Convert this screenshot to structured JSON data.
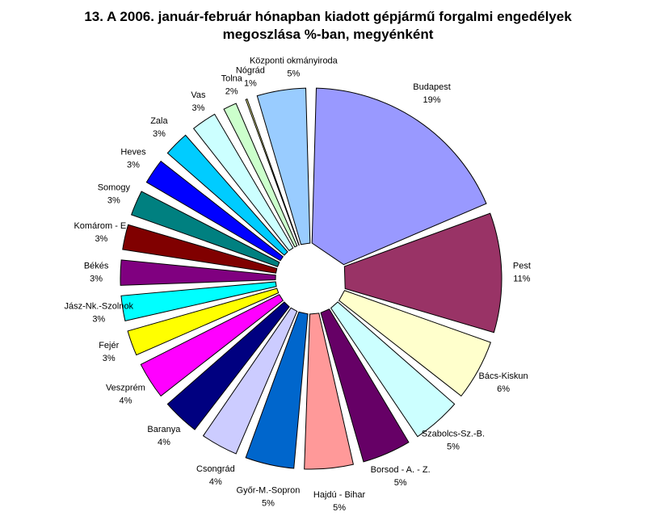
{
  "chart_data": {
    "type": "pie",
    "title_line1": "13. A  2006. január-február hónapban kiadott gépjármű forgalmi engedélyek",
    "title_line2": "megoszlása %-ban, megyénként",
    "legend": "none",
    "slices": [
      {
        "name": "Budapest",
        "pct": "19%",
        "value": 19,
        "color": "#9999ff"
      },
      {
        "name": "Pest",
        "pct": "11%",
        "value": 11,
        "color": "#993366"
      },
      {
        "name": "Bács-Kiskun",
        "pct": "6%",
        "value": 6,
        "color": "#ffffcc"
      },
      {
        "name": "Szabolcs-Sz.-B.",
        "pct": "5%",
        "value": 5,
        "color": "#ccffff"
      },
      {
        "name": "Borsod - A. - Z.",
        "pct": "5%",
        "value": 5,
        "color": "#660066"
      },
      {
        "name": "Hajdú - Bihar",
        "pct": "5%",
        "value": 5,
        "color": "#ff9999"
      },
      {
        "name": "Győr-M.-Sopron",
        "pct": "5%",
        "value": 5,
        "color": "#0066cc"
      },
      {
        "name": "Csongrád",
        "pct": "4%",
        "value": 4,
        "color": "#ccccff"
      },
      {
        "name": "Baranya",
        "pct": "4%",
        "value": 4,
        "color": "#000080"
      },
      {
        "name": "Veszprém",
        "pct": "4%",
        "value": 4,
        "color": "#ff00ff"
      },
      {
        "name": "Fejér",
        "pct": "3%",
        "value": 3,
        "color": "#ffff00"
      },
      {
        "name": "Jász-Nk.-Szolnok",
        "pct": "3%",
        "value": 3,
        "color": "#00ffff"
      },
      {
        "name": "Békés",
        "pct": "3%",
        "value": 3,
        "color": "#800080"
      },
      {
        "name": "Komárom - E.",
        "pct": "3%",
        "value": 3,
        "color": "#800000"
      },
      {
        "name": "Somogy",
        "pct": "3%",
        "value": 3,
        "color": "#008080"
      },
      {
        "name": "Heves",
        "pct": "3%",
        "value": 3,
        "color": "#0000ff"
      },
      {
        "name": "Zala",
        "pct": "3%",
        "value": 3,
        "color": "#00ccff"
      },
      {
        "name": "Vas",
        "pct": "3%",
        "value": 3,
        "color": "#ccffff"
      },
      {
        "name": "Tolna",
        "pct": "2%",
        "value": 2,
        "color": "#ccffcc"
      },
      {
        "name": "Nógrád",
        "pct": "1%",
        "value": 1,
        "color": "#ffff99"
      },
      {
        "name": "Központi okmányiroda",
        "pct": "5%",
        "value": 5,
        "color": "#99ccff"
      }
    ]
  }
}
